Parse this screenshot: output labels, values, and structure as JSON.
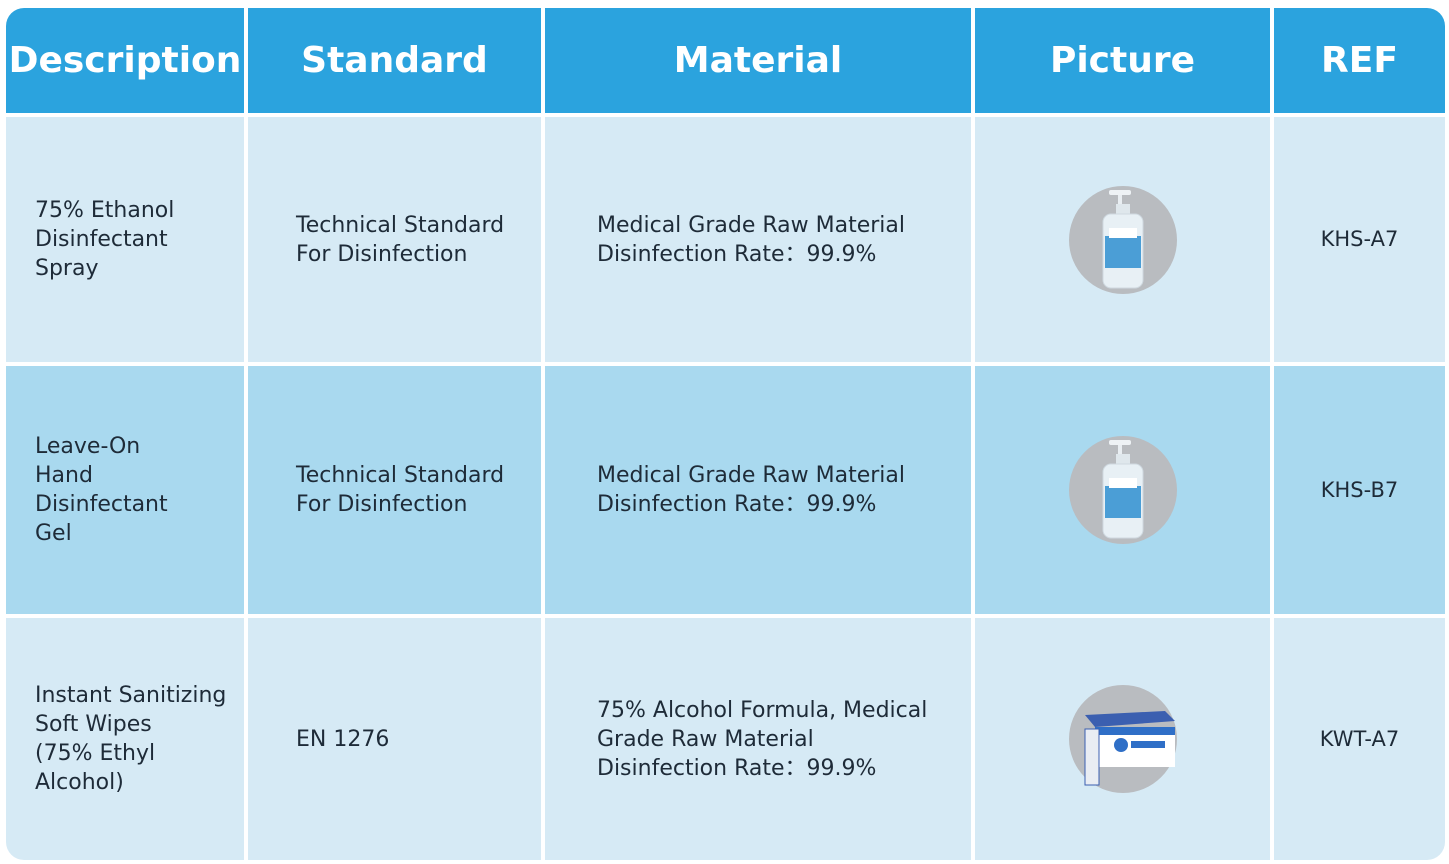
{
  "table": {
    "header": [
      "Description",
      "Standard",
      "Material",
      "Picture",
      "REF"
    ],
    "rows": [
      {
        "description": [
          "75% Ethanol",
          "Disinfectant",
          "Spray"
        ],
        "standard": [
          "Technical Standard",
          "For Disinfection"
        ],
        "material": [
          "Medical Grade Raw Material",
          "Disinfection Rate：99.9%"
        ],
        "ref": "KHS-A7"
      },
      {
        "description": [
          "Leave-On",
          "Hand",
          "Disinfectant",
          "Gel"
        ],
        "standard": [
          "Technical Standard",
          "For Disinfection"
        ],
        "material": [
          "Medical Grade Raw Material",
          "Disinfection Rate：99.9%"
        ],
        "ref": "KHS-B7"
      },
      {
        "description": [
          "Instant Sanitizing",
          "Soft Wipes",
          "(75% Ethyl",
          "Alcohol)"
        ],
        "standard": [
          "EN 1276"
        ],
        "material": [
          "75% Alcohol Formula, Medical",
          "Grade Raw Material",
          "Disinfection Rate：99.9%"
        ],
        "ref": "KWT-A7"
      }
    ]
  }
}
